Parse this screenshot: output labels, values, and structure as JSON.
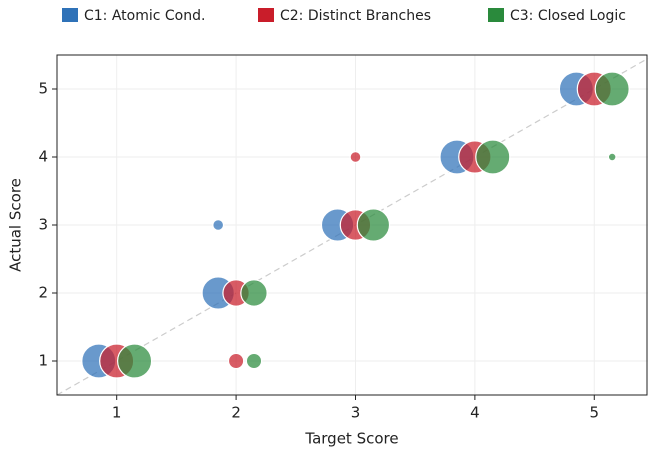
{
  "chart_data": {
    "type": "scatter",
    "xlabel": "Target Score",
    "ylabel": "Actual Score",
    "xlim": [
      0.5,
      5.45
    ],
    "ylim": [
      0.5,
      5.5
    ],
    "xticks": [
      1,
      2,
      3,
      4,
      5
    ],
    "yticks": [
      1,
      2,
      3,
      4,
      5
    ],
    "grid": true,
    "diagonal": true,
    "legend": "top",
    "series": [
      {
        "name": "C1: Atomic Cond.",
        "color": "#2f72b8",
        "x": [
          0.85,
          1.85,
          1.85,
          2.85,
          3.85,
          4.85
        ],
        "y": [
          1,
          2,
          3,
          3,
          4,
          5
        ],
        "sizes": [
          20,
          18,
          2,
          18,
          20,
          20
        ]
      },
      {
        "name": "C2: Distinct Branches",
        "color": "#c91d2a",
        "x": [
          1,
          2,
          2,
          3,
          3,
          4,
          5
        ],
        "y": [
          1,
          2,
          1,
          3,
          4,
          4,
          5
        ],
        "sizes": [
          20,
          12,
          4,
          16,
          2,
          18,
          20
        ]
      },
      {
        "name": "C3: Closed Logic",
        "color": "#2a8a3c",
        "x": [
          1.15,
          2.15,
          2.15,
          3.15,
          4.15,
          5.15,
          5.15
        ],
        "y": [
          1,
          2,
          1,
          3,
          4,
          5,
          4
        ],
        "sizes": [
          20,
          12,
          4,
          18,
          20,
          20,
          1
        ]
      }
    ]
  }
}
